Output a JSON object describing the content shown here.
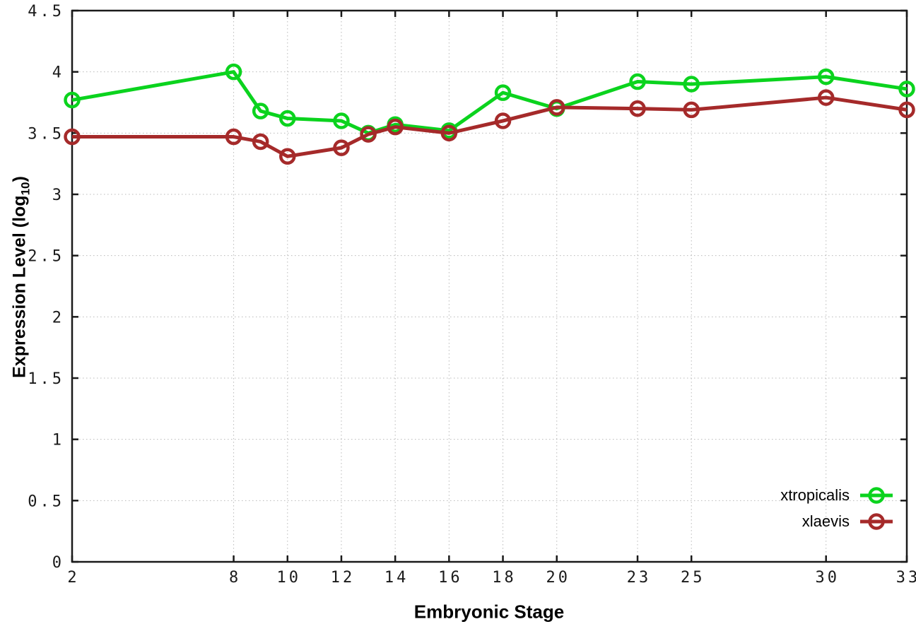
{
  "labels": {
    "xlabel": "Embryonic Stage",
    "ylabel_main": "Expression Level (log",
    "ylabel_sub": "10",
    "ylabel_close": ")"
  },
  "chart_data": {
    "type": "line",
    "title": "",
    "xlabel": "Embryonic Stage",
    "ylabel": "Expression Level (log10)",
    "x": [
      2,
      8,
      9,
      10,
      12,
      13,
      14,
      16,
      18,
      20,
      23,
      25,
      30,
      33
    ],
    "series": [
      {
        "name": "xtropicalis",
        "color": "#0bd31e",
        "marker": "open-circle",
        "values": [
          3.77,
          4.0,
          3.68,
          3.62,
          3.6,
          3.5,
          3.57,
          3.52,
          3.83,
          3.7,
          3.92,
          3.9,
          3.96,
          3.86
        ]
      },
      {
        "name": "xlaevis",
        "color": "#a52a2a",
        "marker": "open-circle",
        "values": [
          3.47,
          3.47,
          3.43,
          3.31,
          3.38,
          3.49,
          3.55,
          3.5,
          3.6,
          3.71,
          3.7,
          3.69,
          3.79,
          3.69
        ]
      }
    ],
    "xlim": [
      2,
      33
    ],
    "ylim": [
      0,
      4.5
    ],
    "x_ticks": [
      2,
      8,
      10,
      12,
      14,
      16,
      18,
      20,
      23,
      25,
      30,
      33
    ],
    "x_tick_labels": [
      "2",
      "8",
      "10",
      "12",
      "14",
      "16",
      "18",
      "20",
      "23",
      "25",
      "30",
      "33"
    ],
    "y_ticks": [
      0,
      0.5,
      1,
      1.5,
      2,
      2.5,
      3,
      3.5,
      4,
      4.5
    ],
    "y_tick_labels": [
      "0",
      "0.5",
      "1",
      "1.5",
      "2",
      "2.5",
      "3",
      "3.5",
      "4",
      "4.5"
    ],
    "grid": true,
    "grid_style": "dotted",
    "legend_position": "bottom-right",
    "border_color": "#1a1a1a",
    "grid_color": "#b9b9b9"
  }
}
